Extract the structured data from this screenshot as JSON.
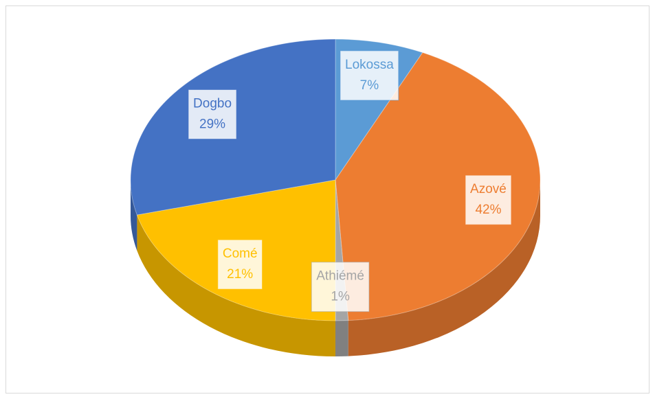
{
  "chart_data": {
    "type": "pie",
    "categories": [
      "Lokossa",
      "Azové",
      "Athiémé",
      "Comé",
      "Dogbo"
    ],
    "values": [
      7,
      42,
      1,
      21,
      29
    ],
    "value_labels": [
      "7%",
      "42%",
      "1%",
      "21%",
      "29%"
    ],
    "colors": [
      "#5b9bd5",
      "#ed7d31",
      "#a5a5a5",
      "#ffc000",
      "#4472c4"
    ]
  }
}
